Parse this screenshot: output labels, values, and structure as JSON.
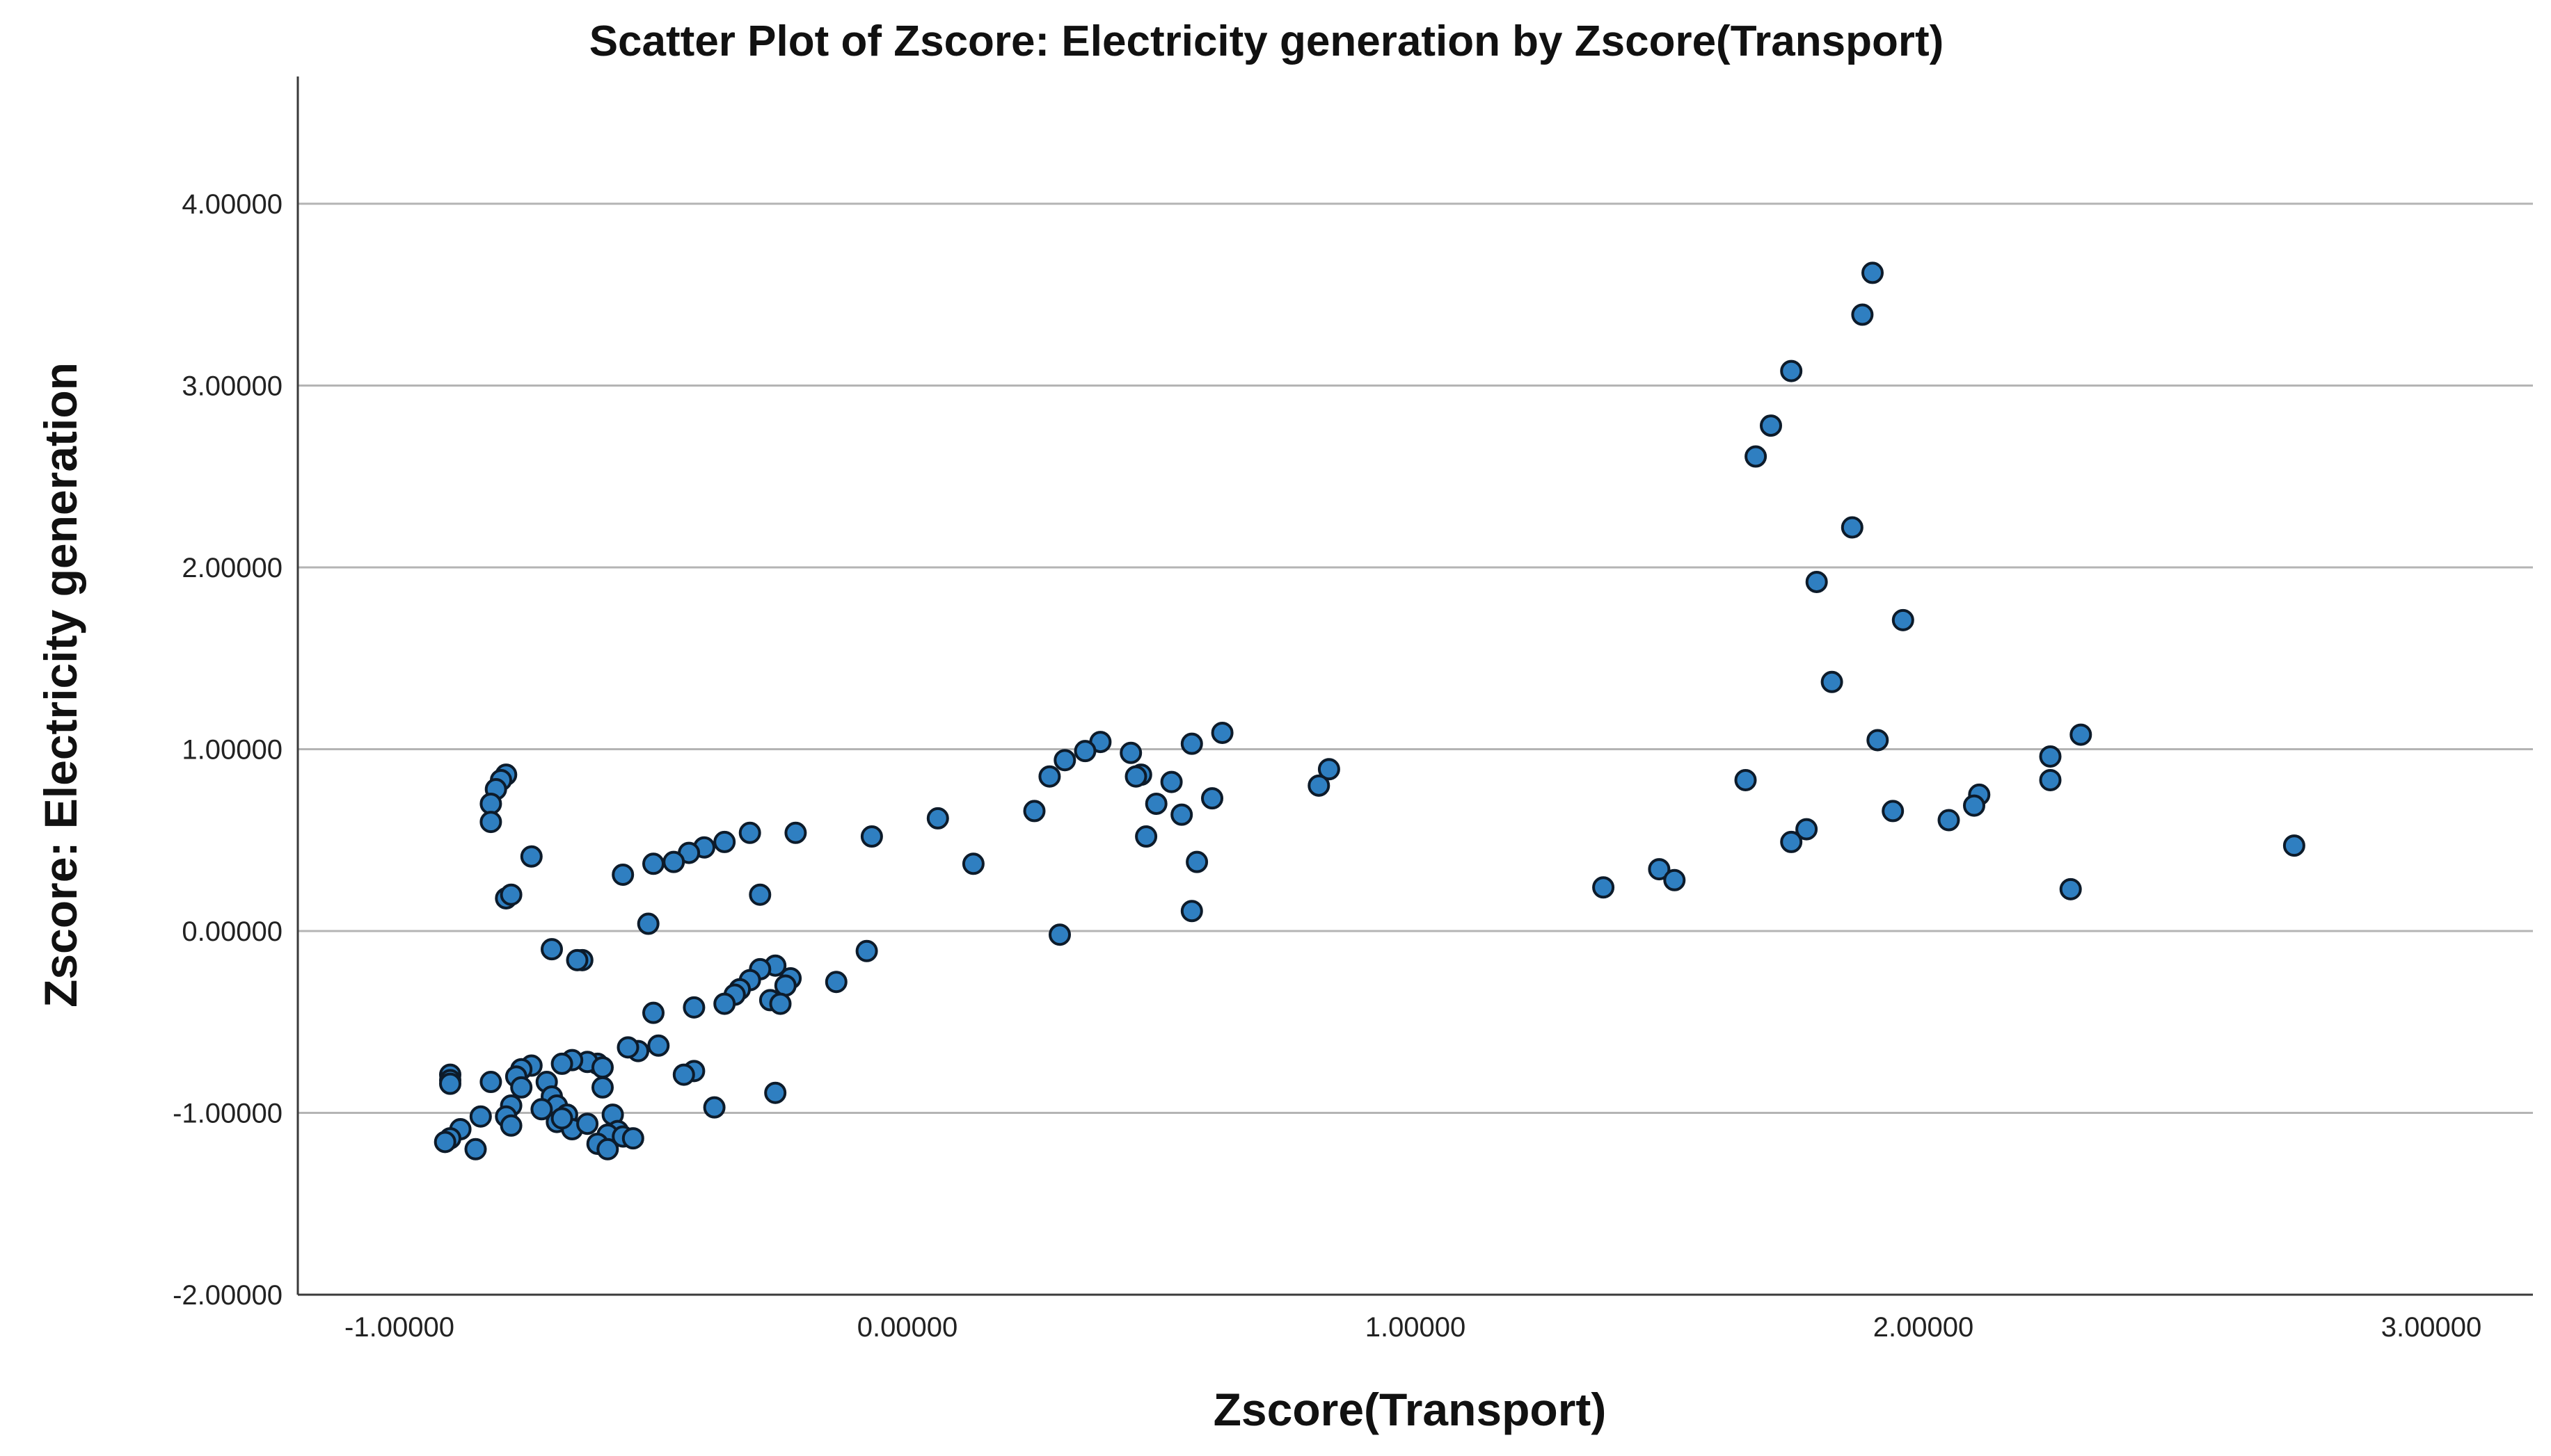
{
  "chart_data": {
    "type": "scatter",
    "title": "Scatter Plot of Zscore:   Electricity generation by Zscore(Transport)",
    "xlabel": "Zscore(Transport)",
    "ylabel": "Zscore:   Electricity generation",
    "xlim": [
      -1.2,
      3.2
    ],
    "ylim": [
      -2.0,
      4.7
    ],
    "x_ticks": [
      -1.0,
      0.0,
      1.0,
      2.0,
      3.0
    ],
    "x_tick_labels": [
      "-1.00000",
      "0.00000",
      "1.00000",
      "2.00000",
      "3.00000"
    ],
    "y_ticks": [
      -2.0,
      -1.0,
      0.0,
      1.0,
      2.0,
      3.0,
      4.0
    ],
    "y_tick_labels": [
      "-2.00000",
      "-1.00000",
      "0.00000",
      "1.00000",
      "2.00000",
      "3.00000",
      "4.00000"
    ],
    "grid": true,
    "marker_color": "#2f7fc1",
    "marker_edge_color": "#0d1b2a",
    "points": [
      [
        1.9,
        3.62
      ],
      [
        1.88,
        3.39
      ],
      [
        1.74,
        3.08
      ],
      [
        1.7,
        2.78
      ],
      [
        1.67,
        2.61
      ],
      [
        1.86,
        2.22
      ],
      [
        1.79,
        1.92
      ],
      [
        1.96,
        1.71
      ],
      [
        1.82,
        1.37
      ],
      [
        1.91,
        1.05
      ],
      [
        2.31,
        1.08
      ],
      [
        2.25,
        0.96
      ],
      [
        2.25,
        0.83
      ],
      [
        2.11,
        0.75
      ],
      [
        2.1,
        0.69
      ],
      [
        1.94,
        0.66
      ],
      [
        2.05,
        0.61
      ],
      [
        1.65,
        0.83
      ],
      [
        1.77,
        0.56
      ],
      [
        1.74,
        0.49
      ],
      [
        2.29,
        0.23
      ],
      [
        2.73,
        0.47
      ],
      [
        1.37,
        0.24
      ],
      [
        1.48,
        0.34
      ],
      [
        1.51,
        0.28
      ],
      [
        0.62,
        1.09
      ],
      [
        0.56,
        1.03
      ],
      [
        0.38,
        1.04
      ],
      [
        0.35,
        0.99
      ],
      [
        0.44,
        0.98
      ],
      [
        0.31,
        0.94
      ],
      [
        0.28,
        0.85
      ],
      [
        0.46,
        0.86
      ],
      [
        0.45,
        0.85
      ],
      [
        0.52,
        0.82
      ],
      [
        0.49,
        0.7
      ],
      [
        0.6,
        0.73
      ],
      [
        0.54,
        0.64
      ],
      [
        0.47,
        0.52
      ],
      [
        0.57,
        0.38
      ],
      [
        0.56,
        0.11
      ],
      [
        0.83,
        0.89
      ],
      [
        0.81,
        0.8
      ],
      [
        0.25,
        0.66
      ],
      [
        0.06,
        0.62
      ],
      [
        0.13,
        0.37
      ],
      [
        0.3,
        -0.02
      ],
      [
        -0.07,
        0.52
      ],
      [
        -0.22,
        0.54
      ],
      [
        -0.31,
        0.54
      ],
      [
        -0.36,
        0.49
      ],
      [
        -0.4,
        0.46
      ],
      [
        -0.43,
        0.43
      ],
      [
        -0.46,
        0.38
      ],
      [
        -0.5,
        0.37
      ],
      [
        -0.56,
        0.31
      ],
      [
        -0.29,
        0.2
      ],
      [
        -0.51,
        0.04
      ],
      [
        -0.08,
        -0.11
      ],
      [
        -0.14,
        -0.28
      ],
      [
        -0.23,
        -0.26
      ],
      [
        -0.24,
        -0.3
      ],
      [
        -0.26,
        -0.19
      ],
      [
        -0.29,
        -0.21
      ],
      [
        -0.31,
        -0.27
      ],
      [
        -0.33,
        -0.32
      ],
      [
        -0.34,
        -0.35
      ],
      [
        -0.36,
        -0.4
      ],
      [
        -0.27,
        -0.38
      ],
      [
        -0.25,
        -0.4
      ],
      [
        -0.42,
        -0.42
      ],
      [
        -0.5,
        -0.45
      ],
      [
        -0.49,
        -0.63
      ],
      [
        -0.53,
        -0.66
      ],
      [
        -0.55,
        -0.64
      ],
      [
        -0.42,
        -0.77
      ],
      [
        -0.44,
        -0.79
      ],
      [
        -0.38,
        -0.97
      ],
      [
        -0.26,
        -0.89
      ],
      [
        -0.79,
        0.86
      ],
      [
        -0.8,
        0.83
      ],
      [
        -0.81,
        0.78
      ],
      [
        -0.82,
        0.7
      ],
      [
        -0.82,
        0.6
      ],
      [
        -0.79,
        0.18
      ],
      [
        -0.78,
        0.2
      ],
      [
        -0.74,
        0.41
      ],
      [
        -0.7,
        -0.1
      ],
      [
        -0.64,
        -0.16
      ],
      [
        -0.65,
        -0.16
      ],
      [
        -0.61,
        -0.73
      ],
      [
        -0.63,
        -0.72
      ],
      [
        -0.66,
        -0.71
      ],
      [
        -0.68,
        -0.73
      ],
      [
        -0.74,
        -0.74
      ],
      [
        -0.76,
        -0.76
      ],
      [
        -0.77,
        -0.8
      ],
      [
        -0.76,
        -0.86
      ],
      [
        -0.71,
        -0.83
      ],
      [
        -0.7,
        -0.91
      ],
      [
        -0.69,
        -0.96
      ],
      [
        -0.67,
        -1.01
      ],
      [
        -0.69,
        -1.05
      ],
      [
        -0.66,
        -1.09
      ],
      [
        -0.63,
        -1.06
      ],
      [
        -0.6,
        -0.75
      ],
      [
        -0.58,
        -1.01
      ],
      [
        -0.57,
        -1.1
      ],
      [
        -0.59,
        -1.12
      ],
      [
        -0.61,
        -1.17
      ],
      [
        -0.59,
        -1.2
      ],
      [
        -0.56,
        -1.13
      ],
      [
        -0.54,
        -1.14
      ],
      [
        -0.6,
        -0.86
      ],
      [
        -0.78,
        -0.96
      ],
      [
        -0.79,
        -1.02
      ],
      [
        -0.78,
        -1.07
      ],
      [
        -0.84,
        -1.02
      ],
      [
        -0.82,
        -0.83
      ],
      [
        -0.9,
        -0.79
      ],
      [
        -0.9,
        -0.82
      ],
      [
        -0.9,
        -0.84
      ],
      [
        -0.88,
        -1.09
      ],
      [
        -0.9,
        -1.14
      ],
      [
        -0.91,
        -1.16
      ],
      [
        -0.85,
        -1.2
      ],
      [
        -0.72,
        -0.98
      ],
      [
        -0.68,
        -1.03
      ]
    ]
  }
}
